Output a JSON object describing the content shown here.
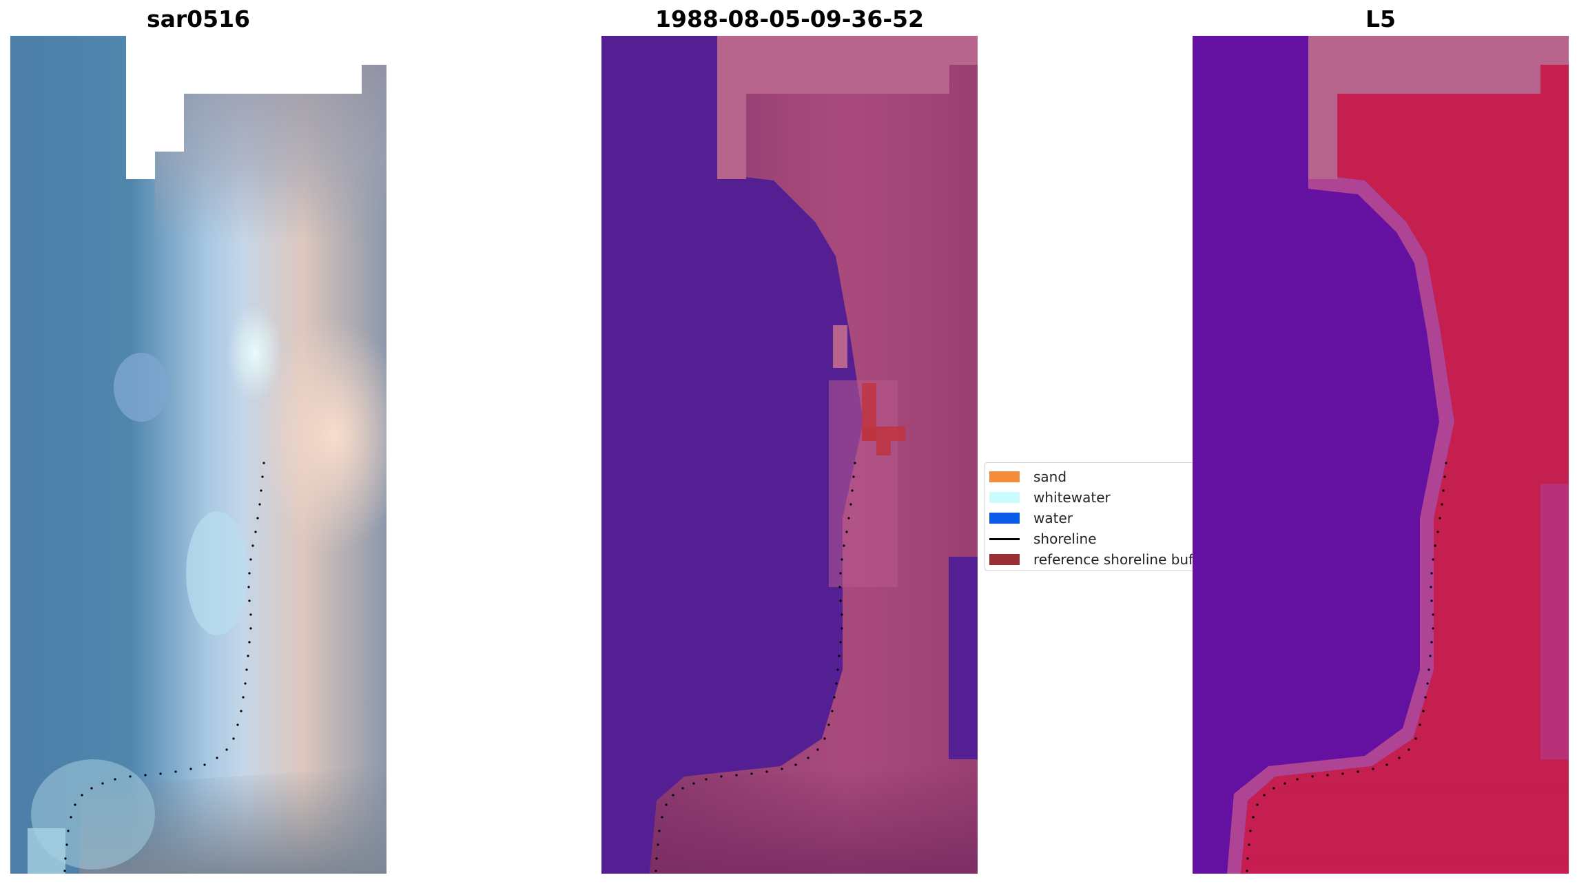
{
  "figure": {
    "panels": [
      {
        "id": "rgb",
        "title": "sar0516"
      },
      {
        "id": "classification",
        "title": "1988-08-05-09-36-52"
      },
      {
        "id": "index",
        "title": "L5"
      }
    ]
  },
  "legend": {
    "items": [
      {
        "label": "sand",
        "color": "#f28c3a",
        "kind": "patch"
      },
      {
        "label": "whitewater",
        "color": "#ccfbfb",
        "kind": "patch"
      },
      {
        "label": "water",
        "color": "#0a5be6",
        "kind": "patch"
      },
      {
        "label": "shoreline",
        "color": "#000000",
        "kind": "line"
      },
      {
        "label": "reference shoreline buffer",
        "color": "#9a2e35",
        "kind": "patch"
      }
    ]
  },
  "colors": {
    "water_class": "#531f93",
    "land_class": "#843a6a",
    "nodata": "#b8658e",
    "index_low": "#5e0ea0",
    "index_high": "#c4093a"
  }
}
